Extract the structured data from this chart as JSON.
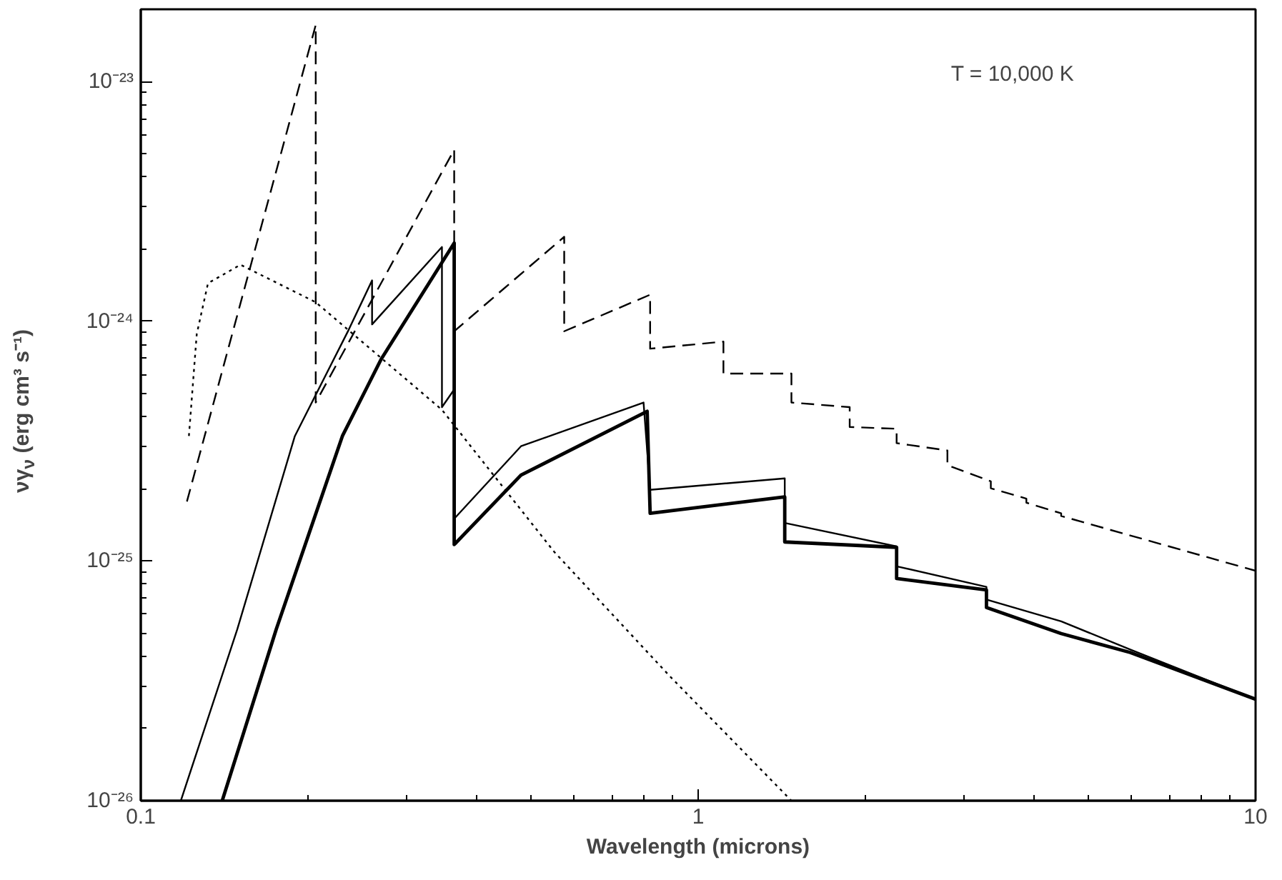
{
  "chart_data": {
    "type": "line",
    "xlabel": "Wavelength (microns)",
    "ylabel": "νγ$_{ν}$ (erg cm³ s⁻¹)",
    "annotations": [
      "T = 10,000 K"
    ],
    "log": "xy",
    "grid": false,
    "xlim": [
      0.1,
      10
    ],
    "ylim": [
      1e-26,
      2e-23
    ],
    "xticks": [
      0.1,
      1,
      10
    ],
    "yticks": [
      {
        "value": 1e-26,
        "label": "10⁻²⁶"
      },
      {
        "value": 1e-25,
        "label": "10⁻²⁵"
      },
      {
        "value": 1e-24,
        "label": "10⁻²⁴"
      },
      {
        "value": 1e-23,
        "label": "10⁻²³"
      }
    ],
    "series": [
      {
        "color": "#000000",
        "line_style": "dashed",
        "x": [
          0.121,
          0.206,
          0.206,
          0.365,
          0.365,
          0.575,
          0.575,
          0.82,
          0.82,
          1.11,
          1.11,
          1.47,
          1.47,
          1.87,
          1.87,
          2.27,
          2.27,
          2.8,
          2.8,
          3.35,
          3.35,
          3.88,
          3.88,
          4.48,
          4.48,
          10
        ],
        "values": [
          1.77e-25,
          1.72e-23,
          4.58e-25,
          5.19e-24,
          9.08e-25,
          2.25e-24,
          9.08e-25,
          1.29e-24,
          7.68e-25,
          8.22e-25,
          6.05e-25,
          6.05e-25,
          4.58e-25,
          4.38e-25,
          3.62e-25,
          3.56e-25,
          3.1e-25,
          2.89e-25,
          2.51e-25,
          2.15e-25,
          2.01e-25,
          1.82e-25,
          1.75e-25,
          1.58e-25,
          1.54e-25,
          9.1e-26
        ]
      },
      {
        "color": "#000000",
        "line_style": "dotted",
        "x": [
          0.122,
          0.126,
          0.132,
          0.151,
          0.206,
          0.347,
          0.552,
          0.888,
          1.47
        ],
        "values": [
          3.32e-25,
          8.82e-25,
          1.44e-24,
          1.72e-24,
          1.2e-24,
          4.27e-25,
          1.09e-25,
          3.32e-26,
          1e-26
        ]
      },
      {
        "color": "#000000",
        "line_style": "solid",
        "x": [
          0.118,
          0.149,
          0.189,
          0.236,
          0.26,
          0.26,
          0.347,
          0.347,
          0.365,
          0.365,
          0.481,
          0.798,
          0.82,
          1.43,
          1.43,
          2.27,
          2.27,
          3.29,
          3.29,
          4.48,
          5.96,
          10
        ],
        "values": [
          1e-26,
          5.19e-26,
          3.32e-25,
          9.2e-25,
          1.48e-24,
          9.7e-25,
          2.04e-24,
          4.38e-25,
          5.19e-25,
          1.5e-25,
          3.01e-25,
          4.58e-25,
          1.98e-25,
          2.21e-25,
          1.44e-25,
          1.15e-25,
          9.5e-26,
          7.8e-26,
          6.9e-26,
          5.6e-26,
          4.27e-26,
          2.65e-26
        ]
      },
      {
        "color": "#000000",
        "line_style": "solid",
        "x": [
          0.14,
          0.175,
          0.23,
          0.27,
          0.365,
          0.365,
          0.481,
          0.81,
          0.82,
          1.43,
          1.43,
          2.27,
          2.27,
          3.29,
          3.29,
          4.48,
          5.96,
          10
        ],
        "values": [
          1e-26,
          5.19e-26,
          3.32e-25,
          6.95e-25,
          2.12e-24,
          1.17e-25,
          2.28e-25,
          4.21e-25,
          1.58e-25,
          1.85e-25,
          1.2e-25,
          1.14e-25,
          8.45e-26,
          7.57e-26,
          6.4e-26,
          4.98e-26,
          4.15e-26,
          2.65e-26
        ]
      }
    ]
  }
}
